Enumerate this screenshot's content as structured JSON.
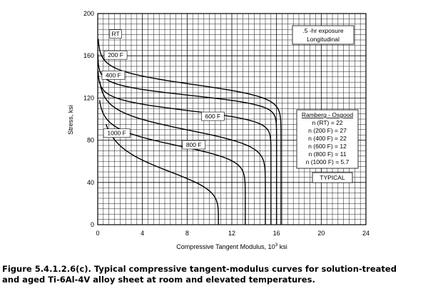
{
  "chart_data": {
    "type": "line",
    "xlabel": "Compressive Tangent Modulus, 10",
    "xlabel_sup": "3",
    "xlabel_unit": " ksi",
    "ylabel": "Stress, ksi",
    "xlim": [
      0,
      24
    ],
    "ylim": [
      0,
      200
    ],
    "x_ticks": [
      0,
      4,
      8,
      12,
      16,
      20,
      24
    ],
    "y_ticks": [
      0,
      40,
      80,
      120,
      160,
      200
    ],
    "grid": true,
    "series": [
      {
        "name": "RT",
        "label": "RT",
        "label_pos": [
          1.6,
          180
        ],
        "E": 16.4,
        "F07": 144,
        "n": 22,
        "smax": 176
      },
      {
        "name": "200 F",
        "label": "200 F",
        "label_pos": [
          1.6,
          160
        ],
        "E": 16.0,
        "F07": 132,
        "n": 27,
        "smax": 162
      },
      {
        "name": "400 F",
        "label": "400 F",
        "label_pos": [
          1.4,
          141
        ],
        "E": 15.5,
        "F07": 118,
        "n": 22,
        "smax": 146
      },
      {
        "name": "600 F",
        "label": "600 F",
        "label_pos": [
          10.3,
          102
        ],
        "E": 15.0,
        "F07": 102,
        "n": 12,
        "smax": 136
      },
      {
        "name": "800 F",
        "label": "800 F",
        "label_pos": [
          8.6,
          75
        ],
        "E": 13.2,
        "F07": 86,
        "n": 11,
        "smax": 118
      },
      {
        "name": "1000 F",
        "label": "1000 F",
        "label_pos": [
          1.7,
          86
        ],
        "E": 10.8,
        "F07": 63,
        "n": 5.7,
        "smax": 95
      }
    ],
    "annotations": [
      ".5 -hr exposure",
      "Longitudinal"
    ],
    "legend": {
      "title": "Ramberg - Osgood",
      "entries": [
        "n (RT) = 22",
        "n (200 F) = 27",
        "n (400 F) = 22",
        "n (600 F) = 12",
        "n (800 F) = 11",
        "n (1000 F) = 5.7"
      ]
    },
    "note": "TYPICAL"
  },
  "caption": {
    "line1": "Figure 5.4.1.2.6(c).  Typical compressive tangent-modulus curves for solution-treated",
    "line2": "and aged Ti-6Al-4V alloy sheet at room and elevated temperatures."
  }
}
